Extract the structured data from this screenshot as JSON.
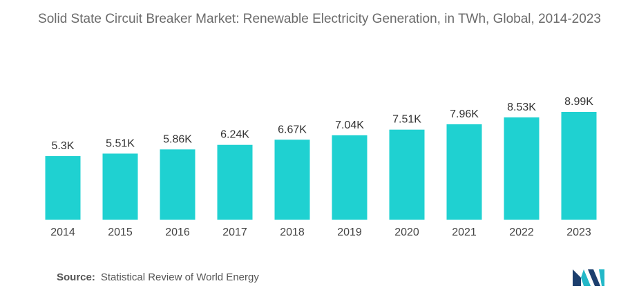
{
  "chart_data": {
    "type": "bar",
    "title": "Solid State Circuit Breaker Market: Renewable Electricity Generation, in TWh, Global, 2014-2023",
    "categories": [
      "2014",
      "2015",
      "2016",
      "2017",
      "2018",
      "2019",
      "2020",
      "2021",
      "2022",
      "2023"
    ],
    "values": [
      5300,
      5510,
      5860,
      6240,
      6670,
      7040,
      7510,
      7960,
      8530,
      8990
    ],
    "value_labels": [
      "5.3K",
      "5.51K",
      "5.86K",
      "6.24K",
      "6.67K",
      "7.04K",
      "7.51K",
      "7.96K",
      "8.53K",
      "8.99K"
    ],
    "xlabel": "",
    "ylabel": "",
    "grid": false,
    "legend": "none",
    "bar_color": "#1fd1d1"
  },
  "source": {
    "label": "Source:",
    "text": "Statistical Review of World Energy"
  },
  "logo": {
    "icon": "mordor-intelligence-logo-icon",
    "colors": [
      "#1c3f6e",
      "#23b8c8"
    ]
  }
}
